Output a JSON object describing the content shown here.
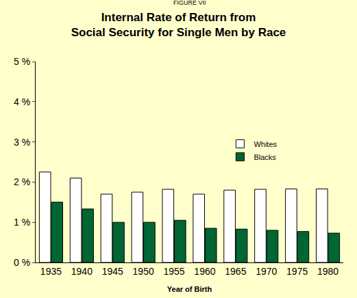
{
  "chart_data": {
    "type": "bar",
    "subtitle": "FIGURE VII",
    "title": "Internal Rate of Return from\nSocial Security for Single Men by Race",
    "x_label": "Year of Birth",
    "categories": [
      "1935",
      "1940",
      "1945",
      "1950",
      "1955",
      "1960",
      "1965",
      "1970",
      "1975",
      "1980"
    ],
    "series": [
      {
        "name": "Whites",
        "color": "#ffffff",
        "values": [
          2.25,
          2.1,
          1.7,
          1.75,
          1.82,
          1.7,
          1.8,
          1.82,
          1.83,
          1.83
        ]
      },
      {
        "name": "Blacks",
        "color": "#006633",
        "values": [
          1.5,
          1.33,
          1.0,
          1.0,
          1.05,
          0.85,
          0.83,
          0.8,
          0.77,
          0.73
        ]
      }
    ],
    "ylim": [
      0,
      5
    ],
    "yticks": [
      {
        "value": 0,
        "label": "0 %"
      },
      {
        "value": 1,
        "label": "1 %"
      },
      {
        "value": 2,
        "label": "2 %"
      },
      {
        "value": 3,
        "label": "3 %"
      },
      {
        "value": 4,
        "label": "4 %"
      },
      {
        "value": 5,
        "label": "5 %"
      }
    ],
    "grid": false,
    "legend": "right"
  }
}
